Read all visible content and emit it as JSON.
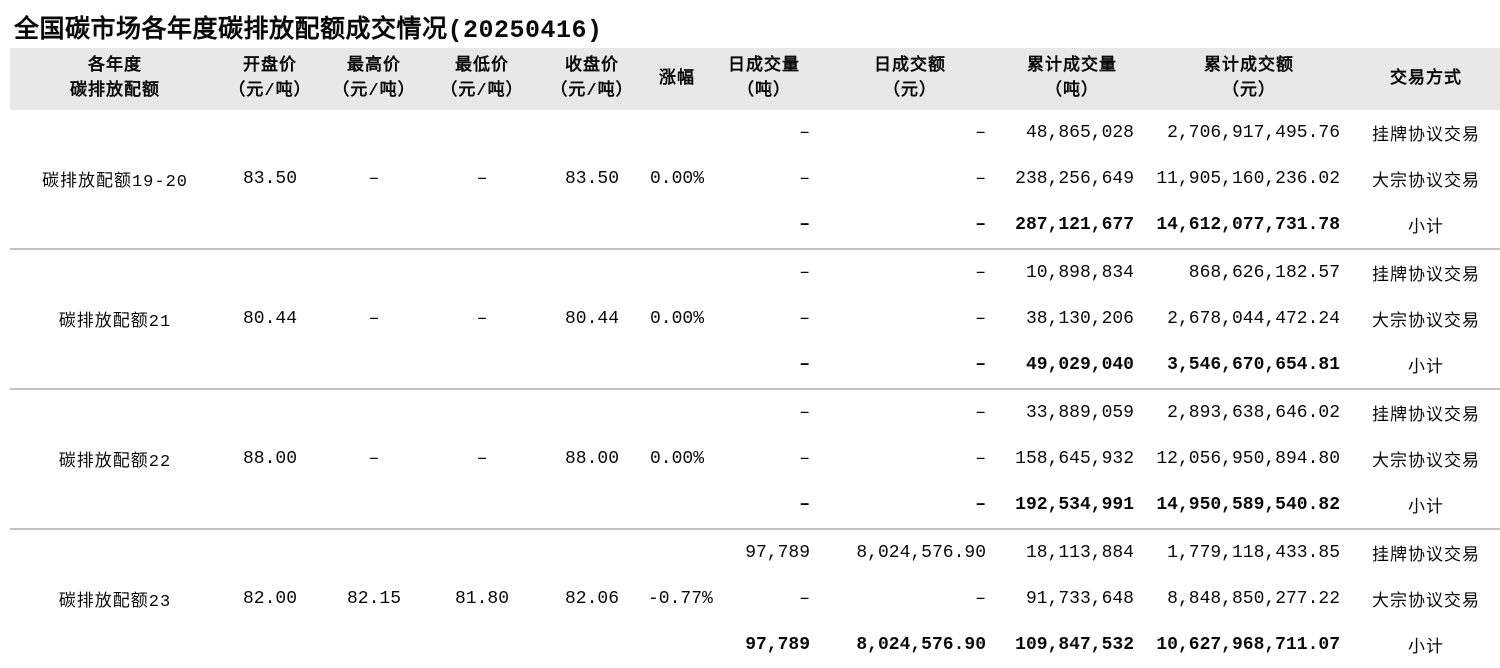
{
  "title": "全国碳市场各年度碳排放配额成交情况(20250416)",
  "colors": {
    "header_bg": "#e8e8e8",
    "separator": "#c3c3c3",
    "text": "#0a0a0a"
  },
  "table": {
    "headers": [
      {
        "line1": "各年度",
        "line2": "碳排放配额"
      },
      {
        "line1": "开盘价",
        "line2": "（元/吨）"
      },
      {
        "line1": "最高价",
        "line2": "（元/吨）"
      },
      {
        "line1": "最低价",
        "line2": "（元/吨）"
      },
      {
        "line1": "收盘价",
        "line2": "（元/吨）"
      },
      {
        "line1": "涨幅",
        "line2": ""
      },
      {
        "line1": "日成交量",
        "line2": "（吨）"
      },
      {
        "line1": "日成交额",
        "line2": "（元）"
      },
      {
        "line1": "累计成交量",
        "line2": "（吨）"
      },
      {
        "line1": "累计成交额",
        "line2": "（元）"
      },
      {
        "line1": "交易方式",
        "line2": ""
      }
    ],
    "groups": [
      {
        "name": "碳排放配额19-20",
        "open": "83.50",
        "high": "–",
        "low": "–",
        "close": "83.50",
        "change": "0.00%",
        "rows": [
          {
            "daily_volume": "–",
            "daily_amount": "–",
            "cum_volume": "48,865,028",
            "cum_amount": "2,706,917,495.76",
            "method": "挂牌协议交易",
            "subtotal": false
          },
          {
            "daily_volume": "–",
            "daily_amount": "–",
            "cum_volume": "238,256,649",
            "cum_amount": "11,905,160,236.02",
            "method": "大宗协议交易",
            "subtotal": false
          },
          {
            "daily_volume": "–",
            "daily_amount": "–",
            "cum_volume": "287,121,677",
            "cum_amount": "14,612,077,731.78",
            "method": "小计",
            "subtotal": true
          }
        ]
      },
      {
        "name": "碳排放配额21",
        "open": "80.44",
        "high": "–",
        "low": "–",
        "close": "80.44",
        "change": "0.00%",
        "rows": [
          {
            "daily_volume": "–",
            "daily_amount": "–",
            "cum_volume": "10,898,834",
            "cum_amount": "868,626,182.57",
            "method": "挂牌协议交易",
            "subtotal": false
          },
          {
            "daily_volume": "–",
            "daily_amount": "–",
            "cum_volume": "38,130,206",
            "cum_amount": "2,678,044,472.24",
            "method": "大宗协议交易",
            "subtotal": false
          },
          {
            "daily_volume": "–",
            "daily_amount": "–",
            "cum_volume": "49,029,040",
            "cum_amount": "3,546,670,654.81",
            "method": "小计",
            "subtotal": true
          }
        ]
      },
      {
        "name": "碳排放配额22",
        "open": "88.00",
        "high": "–",
        "low": "–",
        "close": "88.00",
        "change": "0.00%",
        "rows": [
          {
            "daily_volume": "–",
            "daily_amount": "–",
            "cum_volume": "33,889,059",
            "cum_amount": "2,893,638,646.02",
            "method": "挂牌协议交易",
            "subtotal": false
          },
          {
            "daily_volume": "–",
            "daily_amount": "–",
            "cum_volume": "158,645,932",
            "cum_amount": "12,056,950,894.80",
            "method": "大宗协议交易",
            "subtotal": false
          },
          {
            "daily_volume": "–",
            "daily_amount": "–",
            "cum_volume": "192,534,991",
            "cum_amount": "14,950,589,540.82",
            "method": "小计",
            "subtotal": true
          }
        ]
      },
      {
        "name": "碳排放配额23",
        "open": "82.00",
        "high": "82.15",
        "low": "81.80",
        "close": "82.06",
        "change": "-0.77%",
        "rows": [
          {
            "daily_volume": "97,789",
            "daily_amount": "8,024,576.90",
            "cum_volume": "18,113,884",
            "cum_amount": "1,779,118,433.85",
            "method": "挂牌协议交易",
            "subtotal": false
          },
          {
            "daily_volume": "–",
            "daily_amount": "–",
            "cum_volume": "91,733,648",
            "cum_amount": "8,848,850,277.22",
            "method": "大宗协议交易",
            "subtotal": false
          },
          {
            "daily_volume": "97,789",
            "daily_amount": "8,024,576.90",
            "cum_volume": "109,847,532",
            "cum_amount": "10,627,968,711.07",
            "method": "小计",
            "subtotal": true
          }
        ]
      }
    ]
  }
}
